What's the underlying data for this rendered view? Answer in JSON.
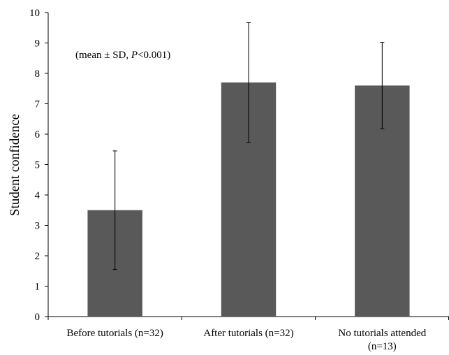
{
  "chart_data": {
    "type": "bar",
    "categories": [
      [
        "Before tutorials (n=32)"
      ],
      [
        "After tutorials (n=32)"
      ],
      [
        "No tutorials attended",
        "(n=13)"
      ]
    ],
    "values": [
      3.5,
      7.7,
      7.6
    ],
    "error_sd": [
      1.95,
      1.97,
      1.42
    ],
    "title": "",
    "xlabel": "",
    "ylabel": "Student confidence",
    "ylim": [
      0,
      10
    ],
    "yticks": [
      "0",
      "1",
      "2",
      "3",
      "4",
      "5",
      "6",
      "7",
      "8",
      "9",
      "10"
    ],
    "annotation": {
      "prefix": "(mean ± SD, ",
      "italic": "P",
      "suffix": "<0.001)"
    },
    "grid": false,
    "legend": "none",
    "bar_color": "#595959"
  }
}
